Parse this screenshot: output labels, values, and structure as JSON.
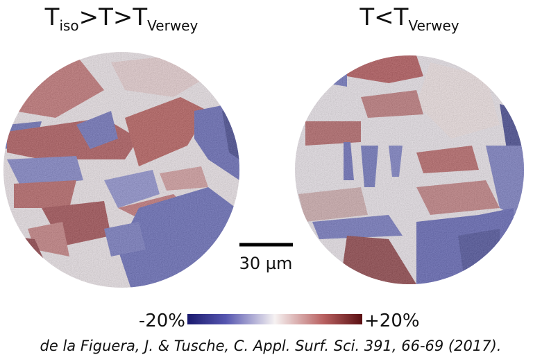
{
  "panels": [
    {
      "title": {
        "base": "T",
        "sub1": "iso",
        "mid": ">T>T",
        "sub2": "Verwey"
      }
    },
    {
      "title": {
        "base": "T<T",
        "sub2": "Verwey"
      }
    }
  ],
  "scale_bar": {
    "label": "30 µm"
  },
  "colorbar": {
    "min_label": "-20%",
    "max_label": "+20%"
  },
  "citation": "de la Figuera, J. & Tusche, C. Appl. Surf. Sci. 391, 66-69 (2017)."
}
